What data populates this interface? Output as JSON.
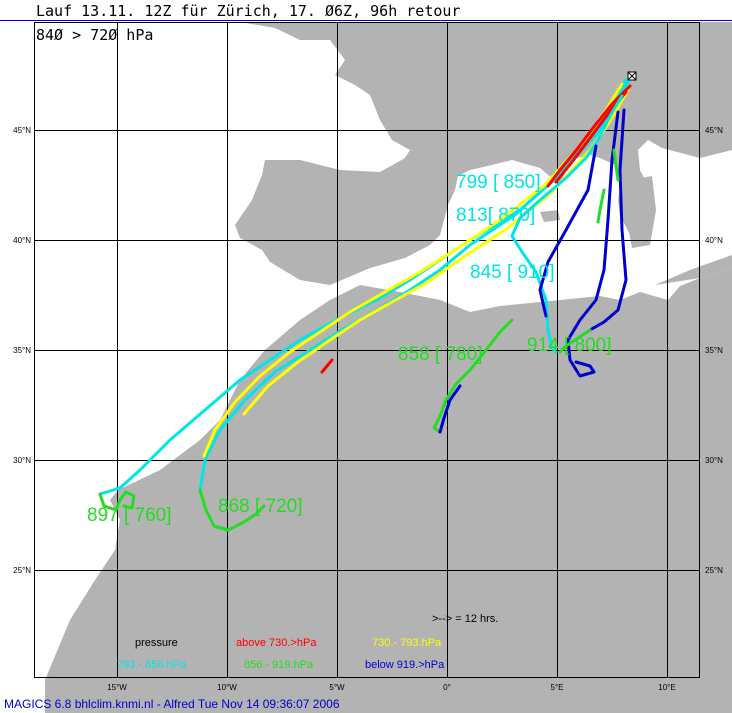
{
  "title": "Lauf 13.11. 12Z für Zürich, 17. Ø6Z, 96h retour",
  "subtitle": "84Ø > 72Ø hPa",
  "footer": "MAGICS 6.8 bhlclim.knmi.nl - Alfred Tue Nov 14 09:36:07 2006",
  "lat_labels": [
    "45°N",
    "40°N",
    "35°N",
    "30°N",
    "25°N"
  ],
  "lon_labels": [
    "15°W",
    "10°W",
    "5°W",
    "0°",
    "5°E",
    "10°E"
  ],
  "trajectory_labels": [
    {
      "text": "799 [ 850]",
      "color": "#00e5e5"
    },
    {
      "text": "813[ 870]",
      "color": "#00e5e5"
    },
    {
      "text": "845 [ 910]",
      "color": "#00e5e5"
    },
    {
      "text": "858 [ 780]",
      "color": "#22dd22"
    },
    {
      "text": "914 [ 800]",
      "color": "#22dd22"
    },
    {
      "text": "868 [ 720]",
      "color": "#22dd22"
    },
    {
      "text": "897 [ 760]",
      "color": "#22dd22"
    }
  ],
  "legend": {
    "interval_note": ">--> = 12 hrs.",
    "pressure_label": "pressure",
    "items": [
      {
        "text": "above   730.>hPa",
        "color": "#ff0000"
      },
      {
        "text": "730.-    793.hPa",
        "color": "#ffff00"
      },
      {
        "text": "793.-    856.hPa",
        "color": "#00e5e5"
      },
      {
        "text": "856.-    919.hPa",
        "color": "#22dd22"
      },
      {
        "text": "below  919.>hPa",
        "color": "#0000cc"
      }
    ]
  },
  "colors": {
    "land": "#b3b3b3",
    "sea": "#ffffff",
    "grid": "#000000",
    "red": "#ff0000",
    "yellow": "#ffff00",
    "cyan": "#00e5e5",
    "green": "#22dd22",
    "blue": "#0000cc"
  },
  "origin_marker": "Zürich"
}
